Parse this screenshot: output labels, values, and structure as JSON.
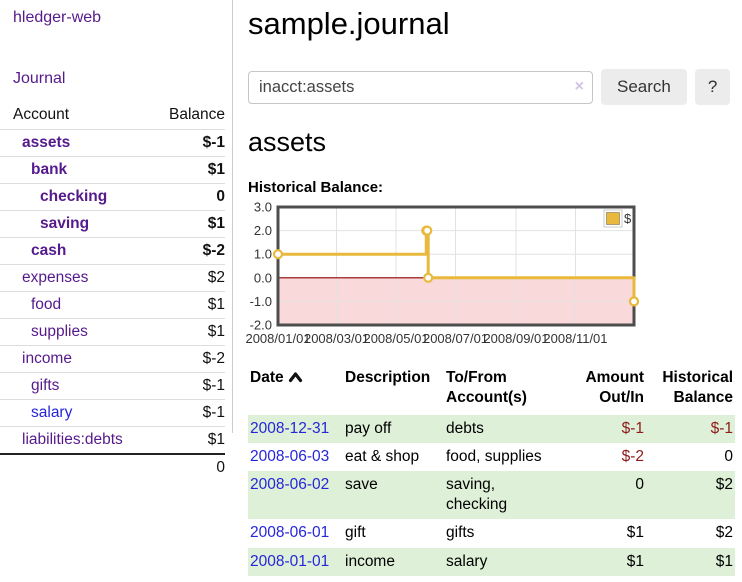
{
  "app": {
    "brand": "hledger-web",
    "nav_journal": "Journal"
  },
  "sidebar": {
    "table": {
      "headers": [
        "Account",
        "Balance"
      ],
      "rows": [
        {
          "name": "assets",
          "depth": 0,
          "bold": true,
          "balance": "$-1",
          "negative": true
        },
        {
          "name": "bank",
          "depth": 1,
          "bold": true,
          "balance": "$1",
          "negative": false
        },
        {
          "name": "checking",
          "depth": 2,
          "bold": true,
          "balance": "0",
          "negative": false
        },
        {
          "name": "saving",
          "depth": 2,
          "bold": true,
          "balance": "$1",
          "negative": false
        },
        {
          "name": "cash",
          "depth": 1,
          "bold": true,
          "balance": "$-2",
          "negative": true
        },
        {
          "name": "expenses",
          "depth": 0,
          "bold": false,
          "balance": "$2",
          "negative": false
        },
        {
          "name": "food",
          "depth": 1,
          "bold": false,
          "balance": "$1",
          "negative": false
        },
        {
          "name": "supplies",
          "depth": 1,
          "bold": false,
          "balance": "$1",
          "negative": false
        },
        {
          "name": "income",
          "depth": 0,
          "bold": false,
          "balance": "$-2",
          "negative": true
        },
        {
          "name": "gifts",
          "depth": 1,
          "bold": false,
          "balance": "$-1",
          "negative": true
        },
        {
          "name": "salary",
          "depth": 1,
          "bold": false,
          "balance": "$-1",
          "negative": true,
          "link_state": "unvisited"
        },
        {
          "name": "liabilities:debts",
          "depth": 0,
          "bold": false,
          "balance": "$1",
          "negative": false
        }
      ],
      "total": "0"
    }
  },
  "header": {
    "title": "sample.journal"
  },
  "search": {
    "value": "inacct:assets",
    "clear_icon": "×",
    "button_label": "Search",
    "help_label": "?"
  },
  "account_page": {
    "heading": "assets",
    "chart_title": "Historical Balance:"
  },
  "chart_data": {
    "type": "line",
    "step": true,
    "title": "Historical Balance",
    "series": [
      {
        "name": "$",
        "color": "#e8b93c",
        "points": [
          [
            "2008-01-01",
            1
          ],
          [
            "2008-06-01",
            2
          ],
          [
            "2008-06-02",
            2
          ],
          [
            "2008-06-03",
            0
          ],
          [
            "2008-12-31",
            -1
          ]
        ]
      }
    ],
    "xlim": [
      "2008-01-01",
      "2008-12-31"
    ],
    "ylim": [
      -2.0,
      3.0
    ],
    "yticks": [
      3.0,
      2.0,
      1.0,
      0.0,
      -1.0,
      -2.0
    ],
    "xticks": [
      "2008/01/01",
      "2008/03/01",
      "2008/05/01",
      "2008/07/01",
      "2008/09/01",
      "2008/11/01"
    ],
    "grid": true,
    "legend_position": "top-right",
    "negative_fill": "#f9d9d9",
    "zero_line_color": "#8b0000",
    "border_color": "#4d4d4d",
    "marker": "open-circle"
  },
  "register": {
    "columns": [
      {
        "label": "Date",
        "key": "date",
        "sorted": "ascending"
      },
      {
        "label": "Description",
        "key": "description"
      },
      {
        "label": "To/From Account(s)",
        "key": "accounts"
      },
      {
        "label": "Amount Out/In",
        "key": "amount",
        "align": "right"
      },
      {
        "label": "Historical Balance",
        "key": "balance",
        "align": "right"
      }
    ],
    "rows": [
      {
        "date": "2008-12-31",
        "description": "pay off",
        "accounts": "debts",
        "amount": "$-1",
        "balance": "$-1"
      },
      {
        "date": "2008-06-03",
        "description": "eat & shop",
        "accounts": "food, supplies",
        "amount": "$-2",
        "balance": "0"
      },
      {
        "date": "2008-06-02",
        "description": "save",
        "accounts": "saving, checking",
        "amount": "0",
        "balance": "$2"
      },
      {
        "date": "2008-06-01",
        "description": "gift",
        "accounts": "gifts",
        "amount": "$1",
        "balance": "$2"
      },
      {
        "date": "2008-01-01",
        "description": "income",
        "accounts": "salary",
        "amount": "$1",
        "balance": "$1"
      }
    ]
  }
}
